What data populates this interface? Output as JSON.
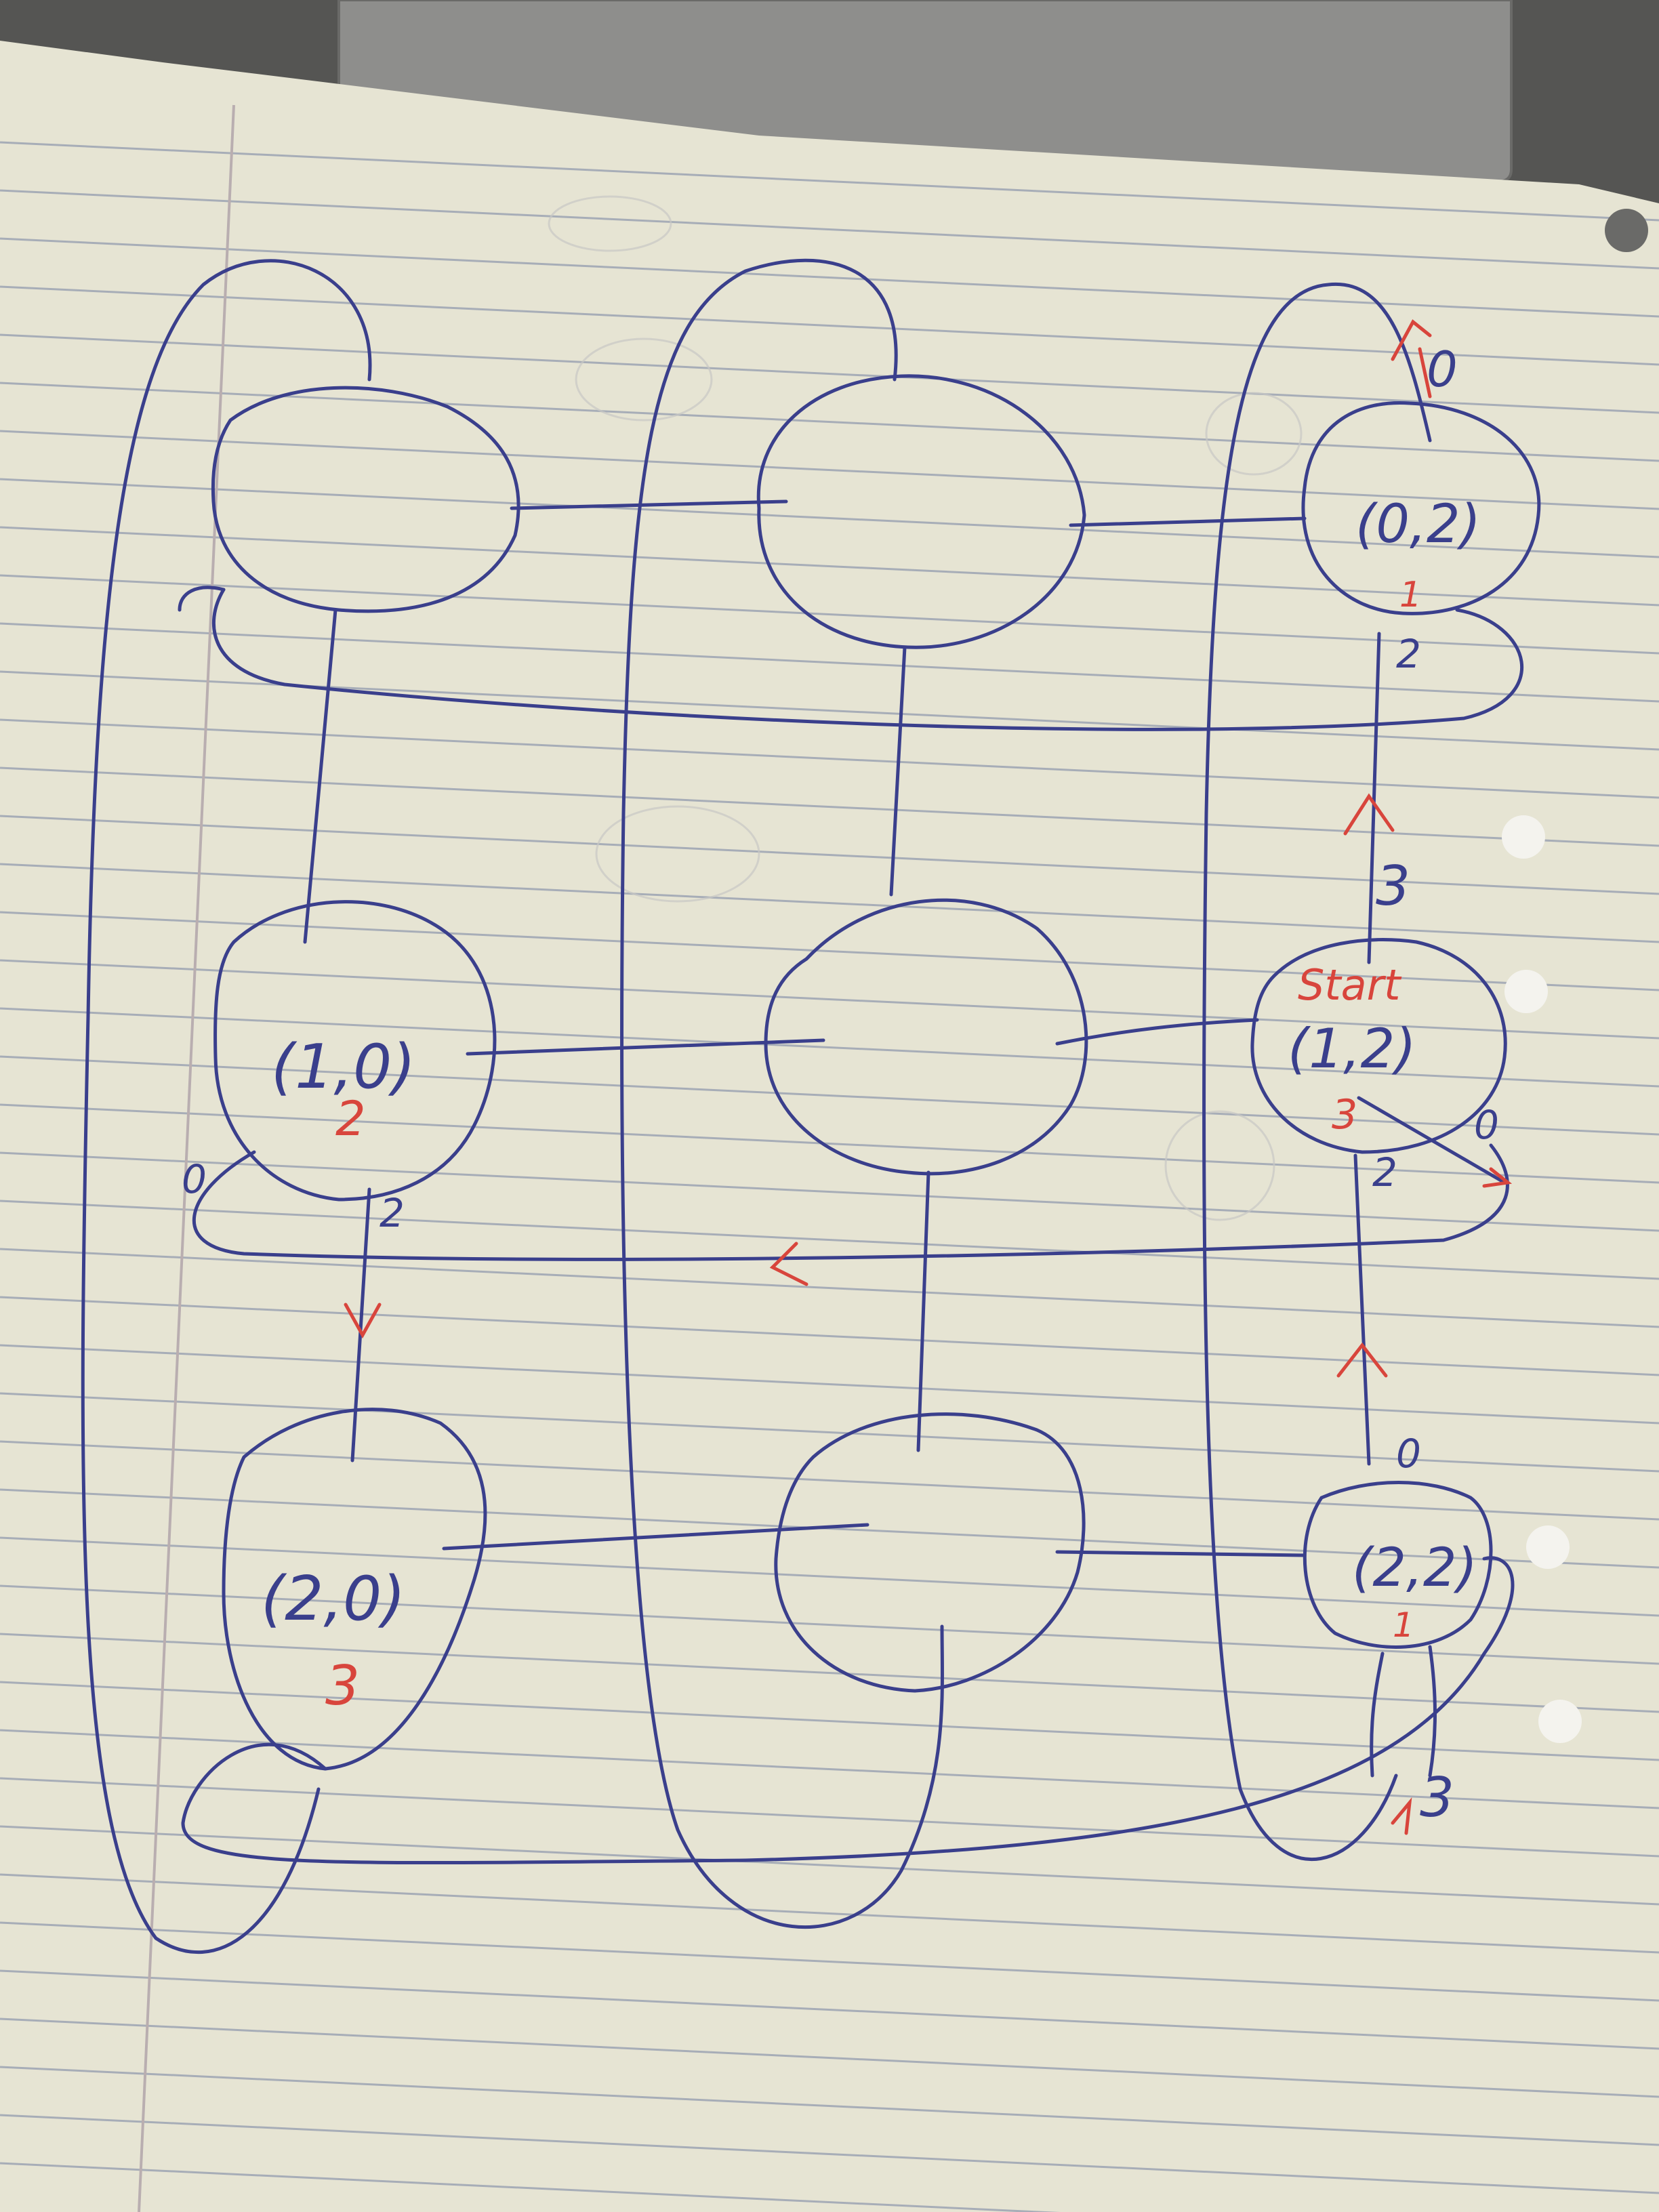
{
  "colors": {
    "paper": "#e6e4d3",
    "rule_line": "#a7adb7",
    "margin_line": "#b9aeb0",
    "ink_blue": "#3a3f8c",
    "ink_red": "#d8453c"
  },
  "nodes": [
    {
      "id": "n00",
      "label": "",
      "weight": ""
    },
    {
      "id": "n01",
      "label": "",
      "weight": ""
    },
    {
      "id": "n02",
      "label": "(0,2)",
      "weight": "1"
    },
    {
      "id": "n10",
      "label": "(1,0)",
      "weight": "2"
    },
    {
      "id": "n11",
      "label": "",
      "weight": ""
    },
    {
      "id": "n12",
      "label": "(1,2)",
      "weight": "3",
      "tag": "Start"
    },
    {
      "id": "n20",
      "label": "(2,0)",
      "weight": "3"
    },
    {
      "id": "n21",
      "label": "",
      "weight": ""
    },
    {
      "id": "n22",
      "label": "(2,2)",
      "weight": "1"
    }
  ],
  "edge_labels": {
    "e02_out_top": "0",
    "e02_down": "2",
    "e12_up": "3",
    "e12_right": "0",
    "e12_down": "2",
    "e10_left": "0",
    "e10_down": "2",
    "e22_up": "0",
    "e22_bottom": "3"
  }
}
